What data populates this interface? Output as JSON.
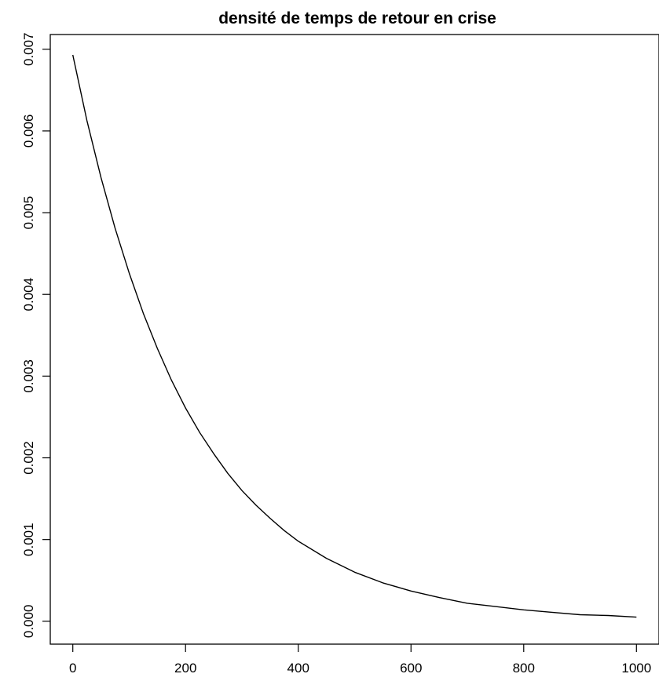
{
  "chart_data": {
    "type": "line",
    "title": "densité de temps de retour en crise",
    "xlabel": "",
    "ylabel": "",
    "xlim": [
      -40,
      1040
    ],
    "ylim": [
      -0.00028,
      0.00718
    ],
    "x_ticks": [
      0,
      200,
      400,
      600,
      800,
      1000
    ],
    "x_tick_labels": [
      "0",
      "200",
      "400",
      "600",
      "800",
      "1000"
    ],
    "y_ticks": [
      0,
      0.001,
      0.002,
      0.003,
      0.004,
      0.005,
      0.006,
      0.007
    ],
    "y_tick_labels": [
      "0.000",
      "0.001",
      "0.002",
      "0.003",
      "0.004",
      "0.005",
      "0.006",
      "0.007"
    ],
    "grid": false,
    "legend": "none",
    "line_color": "#000000",
    "series": [
      {
        "x": [
          0,
          25,
          50,
          75,
          100,
          125,
          150,
          175,
          200,
          225,
          250,
          275,
          300,
          325,
          350,
          375,
          400,
          450,
          500,
          550,
          600,
          650,
          700,
          750,
          800,
          850,
          900,
          950,
          1000
        ],
        "values": [
          0.00693,
          0.00613,
          0.00543,
          0.00481,
          0.00426,
          0.00377,
          0.00334,
          0.00295,
          0.00261,
          0.00231,
          0.00205,
          0.00181,
          0.0016,
          0.00142,
          0.00126,
          0.00111,
          0.00098,
          0.00077,
          0.0006,
          0.00047,
          0.00037,
          0.00029,
          0.00022,
          0.00018,
          0.00014,
          0.00011,
          8e-05,
          7e-05,
          5e-05
        ]
      }
    ]
  }
}
